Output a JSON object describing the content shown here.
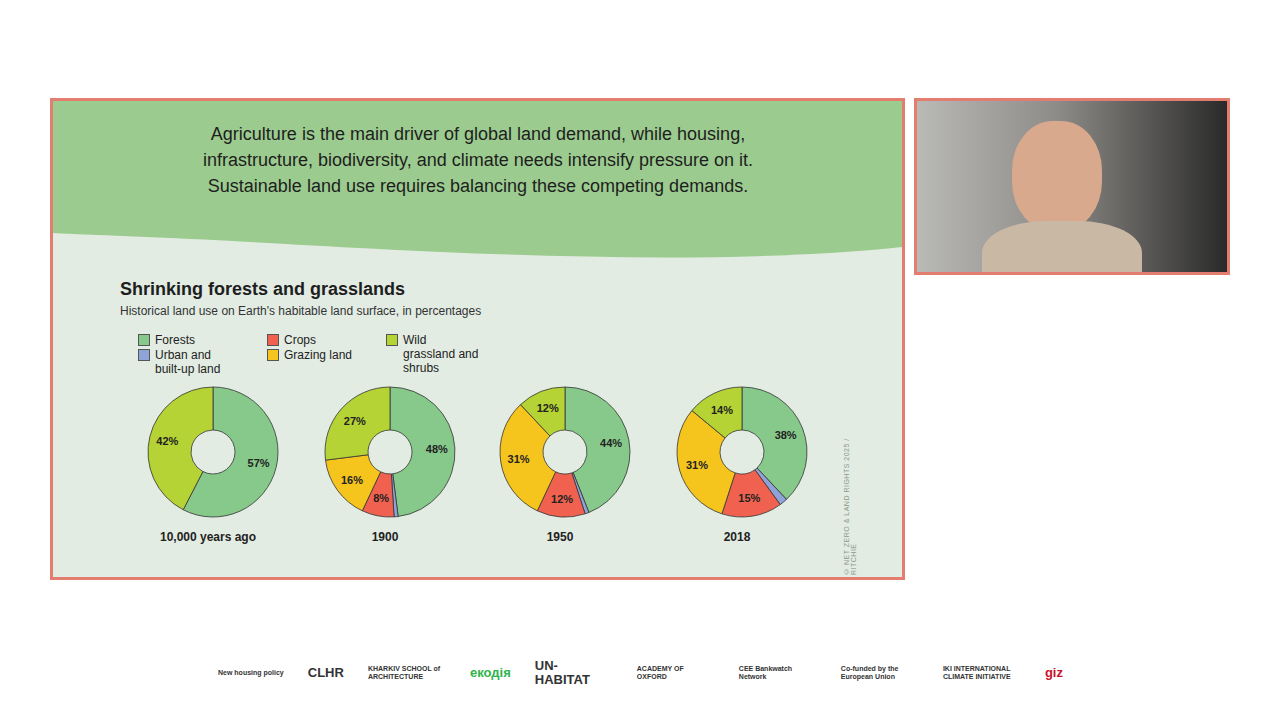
{
  "slide": {
    "text": "Agriculture is the main driver of global land demand, while housing, infrastructure, biodiversity, and climate needs intensify pressure on it. Sustainable land use requires balancing these competing demands.",
    "title": "Shrinking forests and grasslands",
    "subtitle": "Historical land use on Earth's habitable land surface, in percentages",
    "credit": "© NET ZERO & LAND RIGHTS 2025 / RITCHIE"
  },
  "chart_data": [
    {
      "type": "pie",
      "title": "10,000 years ago",
      "categories": [
        "Forests",
        "Wild grassland and shrubs"
      ],
      "values": [
        57,
        42
      ],
      "value_labels": [
        "57%",
        "42%"
      ],
      "colors": [
        "#86c98a",
        "#b5d334"
      ],
      "data_labels": true
    },
    {
      "type": "pie",
      "title": "1900",
      "categories": [
        "Forests",
        "Urban and built-up land",
        "Crops",
        "Grazing land",
        "Wild grassland and shrubs"
      ],
      "values": [
        48,
        1,
        8,
        16,
        27
      ],
      "value_labels": [
        "48%",
        null,
        "8%",
        "16%",
        "27%"
      ],
      "colors": [
        "#86c98a",
        "#8fa3d9",
        "#f0624f",
        "#f5c51e",
        "#b5d334"
      ],
      "data_labels": true
    },
    {
      "type": "pie",
      "title": "1950",
      "categories": [
        "Forests",
        "Urban and built-up land",
        "Crops",
        "Grazing land",
        "Wild grassland and shrubs"
      ],
      "values": [
        44,
        1,
        12,
        31,
        12
      ],
      "value_labels": [
        "44%",
        null,
        "12%",
        "31%",
        "12%"
      ],
      "colors": [
        "#86c98a",
        "#8fa3d9",
        "#f0624f",
        "#f5c51e",
        "#b5d334"
      ],
      "data_labels": true
    },
    {
      "type": "pie",
      "title": "2018",
      "categories": [
        "Forests",
        "Urban and built-up land",
        "Crops",
        "Grazing land",
        "Wild grassland and shrubs"
      ],
      "values": [
        38,
        2,
        15,
        31,
        14
      ],
      "value_labels": [
        "38%",
        null,
        "15%",
        "31%",
        "14%"
      ],
      "colors": [
        "#86c98a",
        "#8fa3d9",
        "#f0624f",
        "#f5c51e",
        "#b5d334"
      ],
      "data_labels": true
    }
  ],
  "logos": [
    "New housing policy",
    "CLHR",
    "KHARKIV SCHOOL of ARCHITECTURE",
    "екодія",
    "UN-HABITAT",
    "ACADEMY OF OXFORD",
    "CEE Bankwatch Network",
    "Co-funded by the European Union",
    "IKI INTERNATIONAL CLIMATE INITIATIVE",
    "giz"
  ]
}
